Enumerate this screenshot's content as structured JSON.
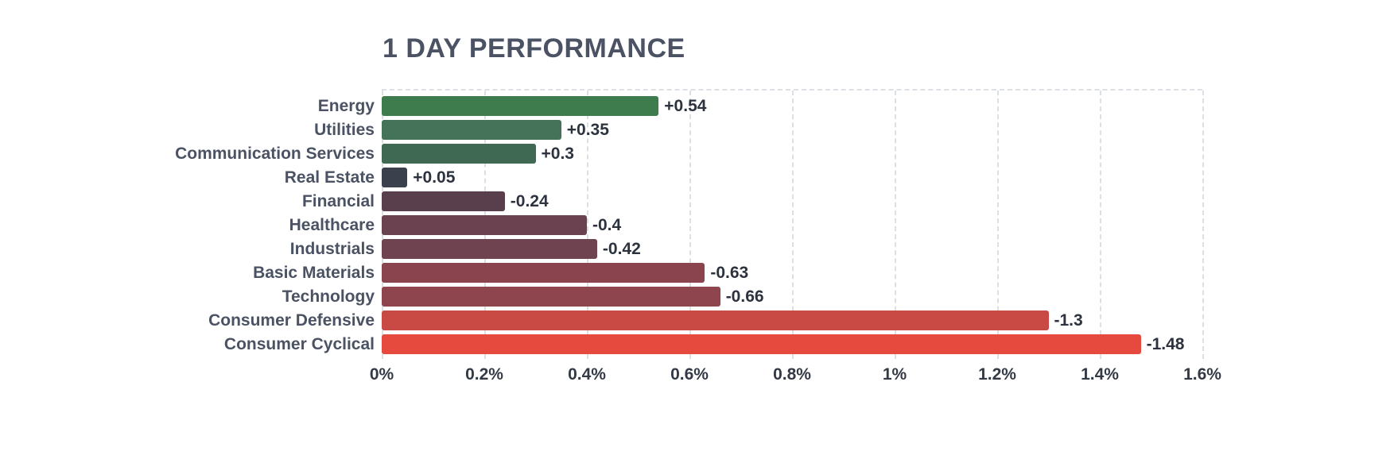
{
  "chart_data": {
    "type": "bar",
    "orientation": "horizontal",
    "title": "1 DAY PERFORMANCE",
    "categories": [
      "Energy",
      "Utilities",
      "Communication Services",
      "Real Estate",
      "Financial",
      "Healthcare",
      "Industrials",
      "Basic Materials",
      "Technology",
      "Consumer Defensive",
      "Consumer Cyclical"
    ],
    "values": [
      0.54,
      0.35,
      0.3,
      0.05,
      -0.24,
      -0.4,
      -0.42,
      -0.63,
      -0.66,
      -1.3,
      -1.48
    ],
    "value_labels": [
      "+0.54",
      "+0.35",
      "+0.3",
      "+0.05",
      "-0.24",
      "-0.4",
      "-0.42",
      "-0.63",
      "-0.66",
      "-1.3",
      "-1.48"
    ],
    "bar_colors": [
      "#3e7c4e",
      "#45735a",
      "#3f6952",
      "#3a404c",
      "#583f4b",
      "#6b4250",
      "#704350",
      "#89444d",
      "#8e454d",
      "#c94a44",
      "#e64a3e"
    ],
    "xlabel": "",
    "ylabel": "",
    "xlim": [
      0,
      1.6
    ],
    "bars_plot_absolute_value": true,
    "x_ticks": [
      {
        "value": 0,
        "label": "0%"
      },
      {
        "value": 0.2,
        "label": "0.2%"
      },
      {
        "value": 0.4,
        "label": "0.4%"
      },
      {
        "value": 0.6,
        "label": "0.6%"
      },
      {
        "value": 0.8,
        "label": "0.8%"
      },
      {
        "value": 1,
        "label": "1%"
      },
      {
        "value": 1.2,
        "label": "1.2%"
      },
      {
        "value": 1.4,
        "label": "1.4%"
      },
      {
        "value": 1.6,
        "label": "1.6%"
      }
    ],
    "grid": {
      "direction": "vertical",
      "style": "dashed",
      "color": "#dcdfe3"
    },
    "legend": "none"
  },
  "colors": {
    "background": "#ffffff",
    "title_text": "#4a5263",
    "category_text": "#4a5263",
    "value_text": "#2c323e",
    "tick_text": "#333a46",
    "grid": "#dcdfe3"
  }
}
